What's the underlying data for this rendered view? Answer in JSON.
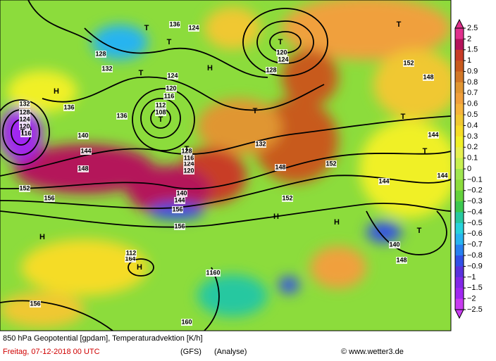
{
  "map": {
    "contour_labels": [
      "132",
      "128",
      "124",
      "120",
      "116",
      "112",
      "108",
      "136",
      "140",
      "144",
      "148",
      "152",
      "156",
      "160",
      "164",
      "136",
      "132",
      "128",
      "124",
      "120",
      "116",
      "112",
      "124",
      "128",
      "124",
      "120",
      "116",
      "144",
      "144",
      "144",
      "148",
      "152",
      "156",
      "140",
      "148",
      "152",
      "156",
      "160",
      "160",
      "156",
      "148",
      "152",
      "132",
      "140",
      "144",
      "136",
      "128",
      "124",
      "120"
    ],
    "pressure_centers": [
      "T",
      "T",
      "T",
      "T",
      "T",
      "T",
      "T",
      "T",
      "T",
      "T",
      "T",
      "T",
      "H",
      "H",
      "H",
      "H",
      "H",
      "H"
    ]
  },
  "legend": {
    "ticks": [
      "2.5",
      "2",
      "1.5",
      "1",
      "0.9",
      "0.8",
      "0.7",
      "0.6",
      "0.5",
      "0.4",
      "0.3",
      "0.2",
      "0.1",
      "0",
      "−0.1",
      "−0.2",
      "−0.3",
      "−0.4",
      "−0.5",
      "−0.6",
      "−0.7",
      "−0.8",
      "−0.9",
      "−1",
      "−1.5",
      "−2",
      "−2.5"
    ],
    "colors": [
      "#e0308c",
      "#b4145a",
      "#c83c28",
      "#c85a1e",
      "#d27828",
      "#e09632",
      "#f0a03c",
      "#f5b43c",
      "#f0c832",
      "#f5dc28",
      "#f0f028",
      "#e6f050",
      "#c8f050",
      "#a0e650",
      "#8cdc3c",
      "#64d23c",
      "#3cc850",
      "#28c8a0",
      "#28d2dc",
      "#28b4f0",
      "#2880f0",
      "#3250e6",
      "#5a32dc",
      "#8228e6",
      "#a028f0",
      "#c83cf0"
    ]
  },
  "footer": {
    "caption": "850 hPa Geopotential [gpdam], Temperaturadvektion [K/h]",
    "date": "Freitag, 07-12-2018  00 UTC",
    "model": "(GFS)",
    "run": "(Analyse)",
    "credit": "© www.wetter3.de"
  }
}
